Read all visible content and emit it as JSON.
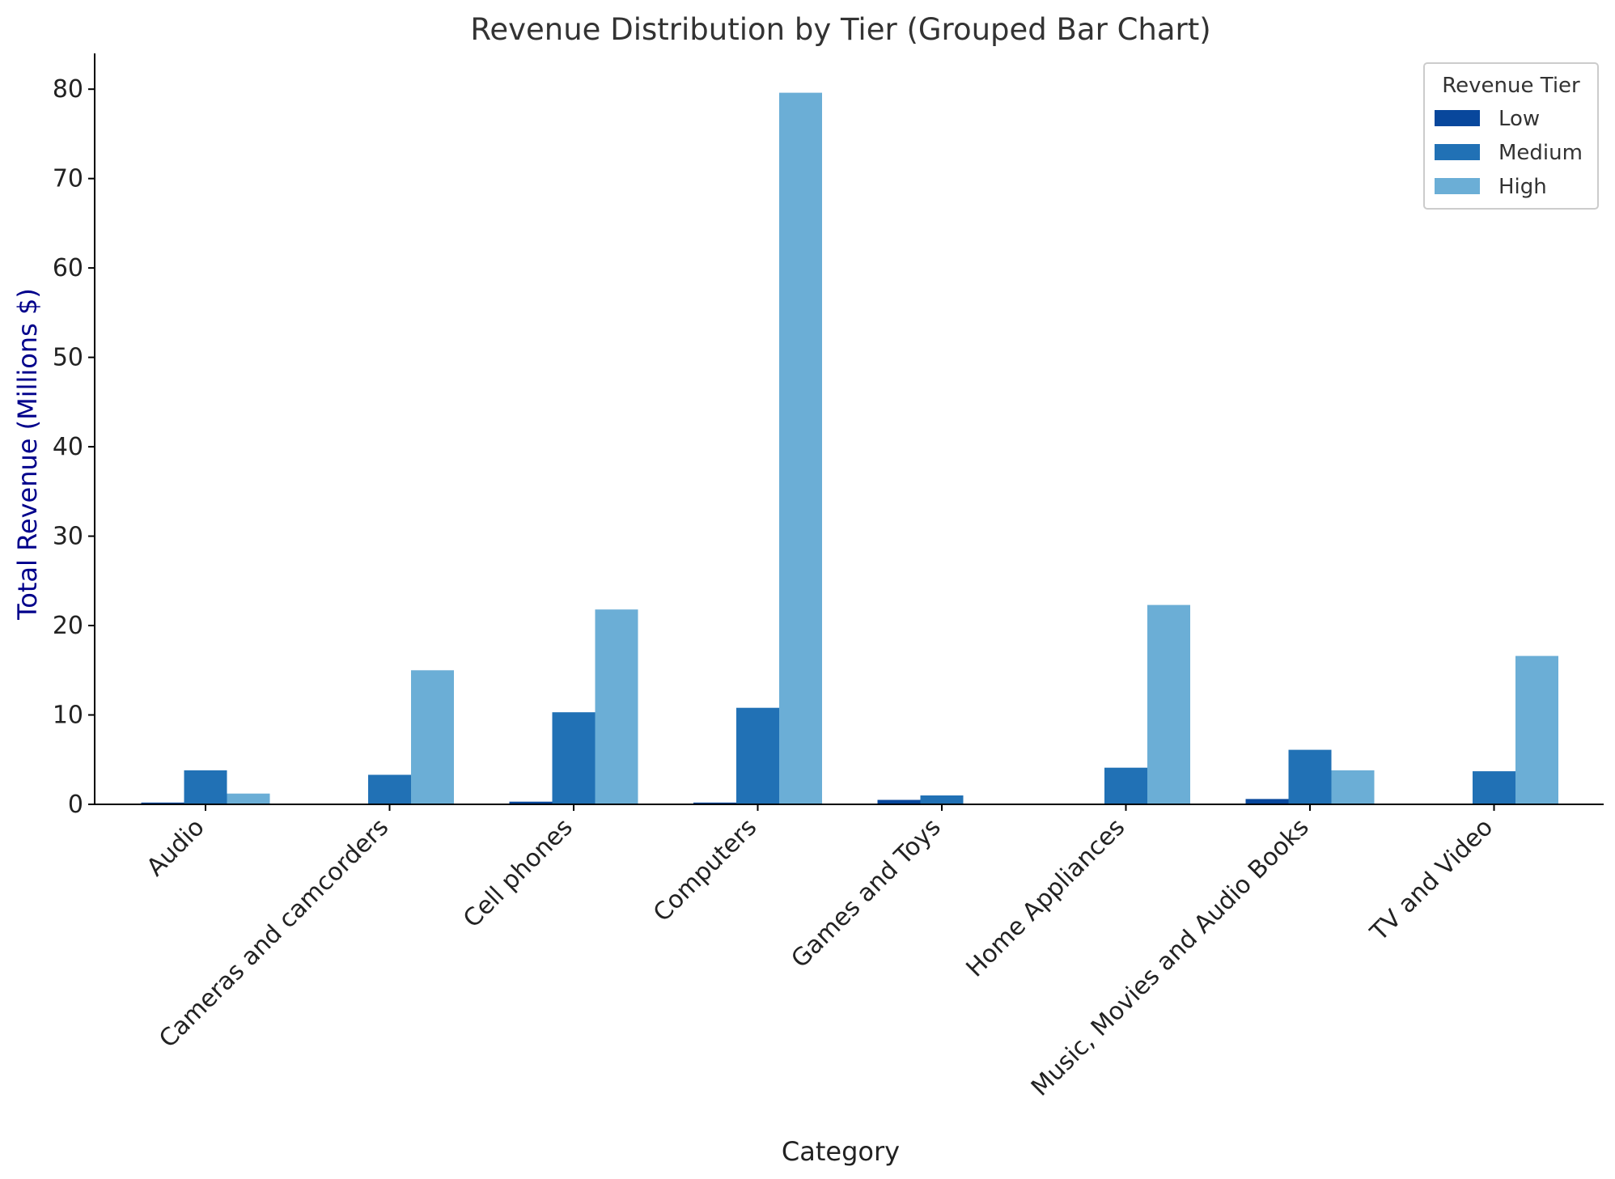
{
  "chart_data": {
    "type": "bar",
    "title": "Revenue Distribution by Tier (Grouped Bar Chart)",
    "xlabel": "Category",
    "ylabel": "Total Revenue (Millions $)",
    "ylabel_color": "#00008b",
    "ylim": [
      0,
      84
    ],
    "yticks": [
      0,
      10,
      20,
      30,
      40,
      50,
      60,
      70,
      80
    ],
    "grid": false,
    "legend": {
      "title": "Revenue Tier",
      "placement": "top-right"
    },
    "categories": [
      "Audio",
      "Cameras and camcorders",
      "Cell phones",
      "Computers",
      "Games and Toys",
      "Home Appliances",
      "Music, Movies and Audio Books",
      "TV and Video"
    ],
    "series": [
      {
        "name": "Low",
        "color": "#08479c",
        "values": [
          0.2,
          0.0,
          0.3,
          0.2,
          0.5,
          0.0,
          0.6,
          0.0
        ]
      },
      {
        "name": "Medium",
        "color": "#2171b5",
        "values": [
          3.8,
          3.3,
          10.3,
          10.8,
          1.0,
          4.1,
          6.1,
          3.7
        ]
      },
      {
        "name": "High",
        "color": "#6baed6",
        "values": [
          1.2,
          15.0,
          21.8,
          79.6,
          0.0,
          22.3,
          3.8,
          16.6
        ]
      }
    ]
  }
}
